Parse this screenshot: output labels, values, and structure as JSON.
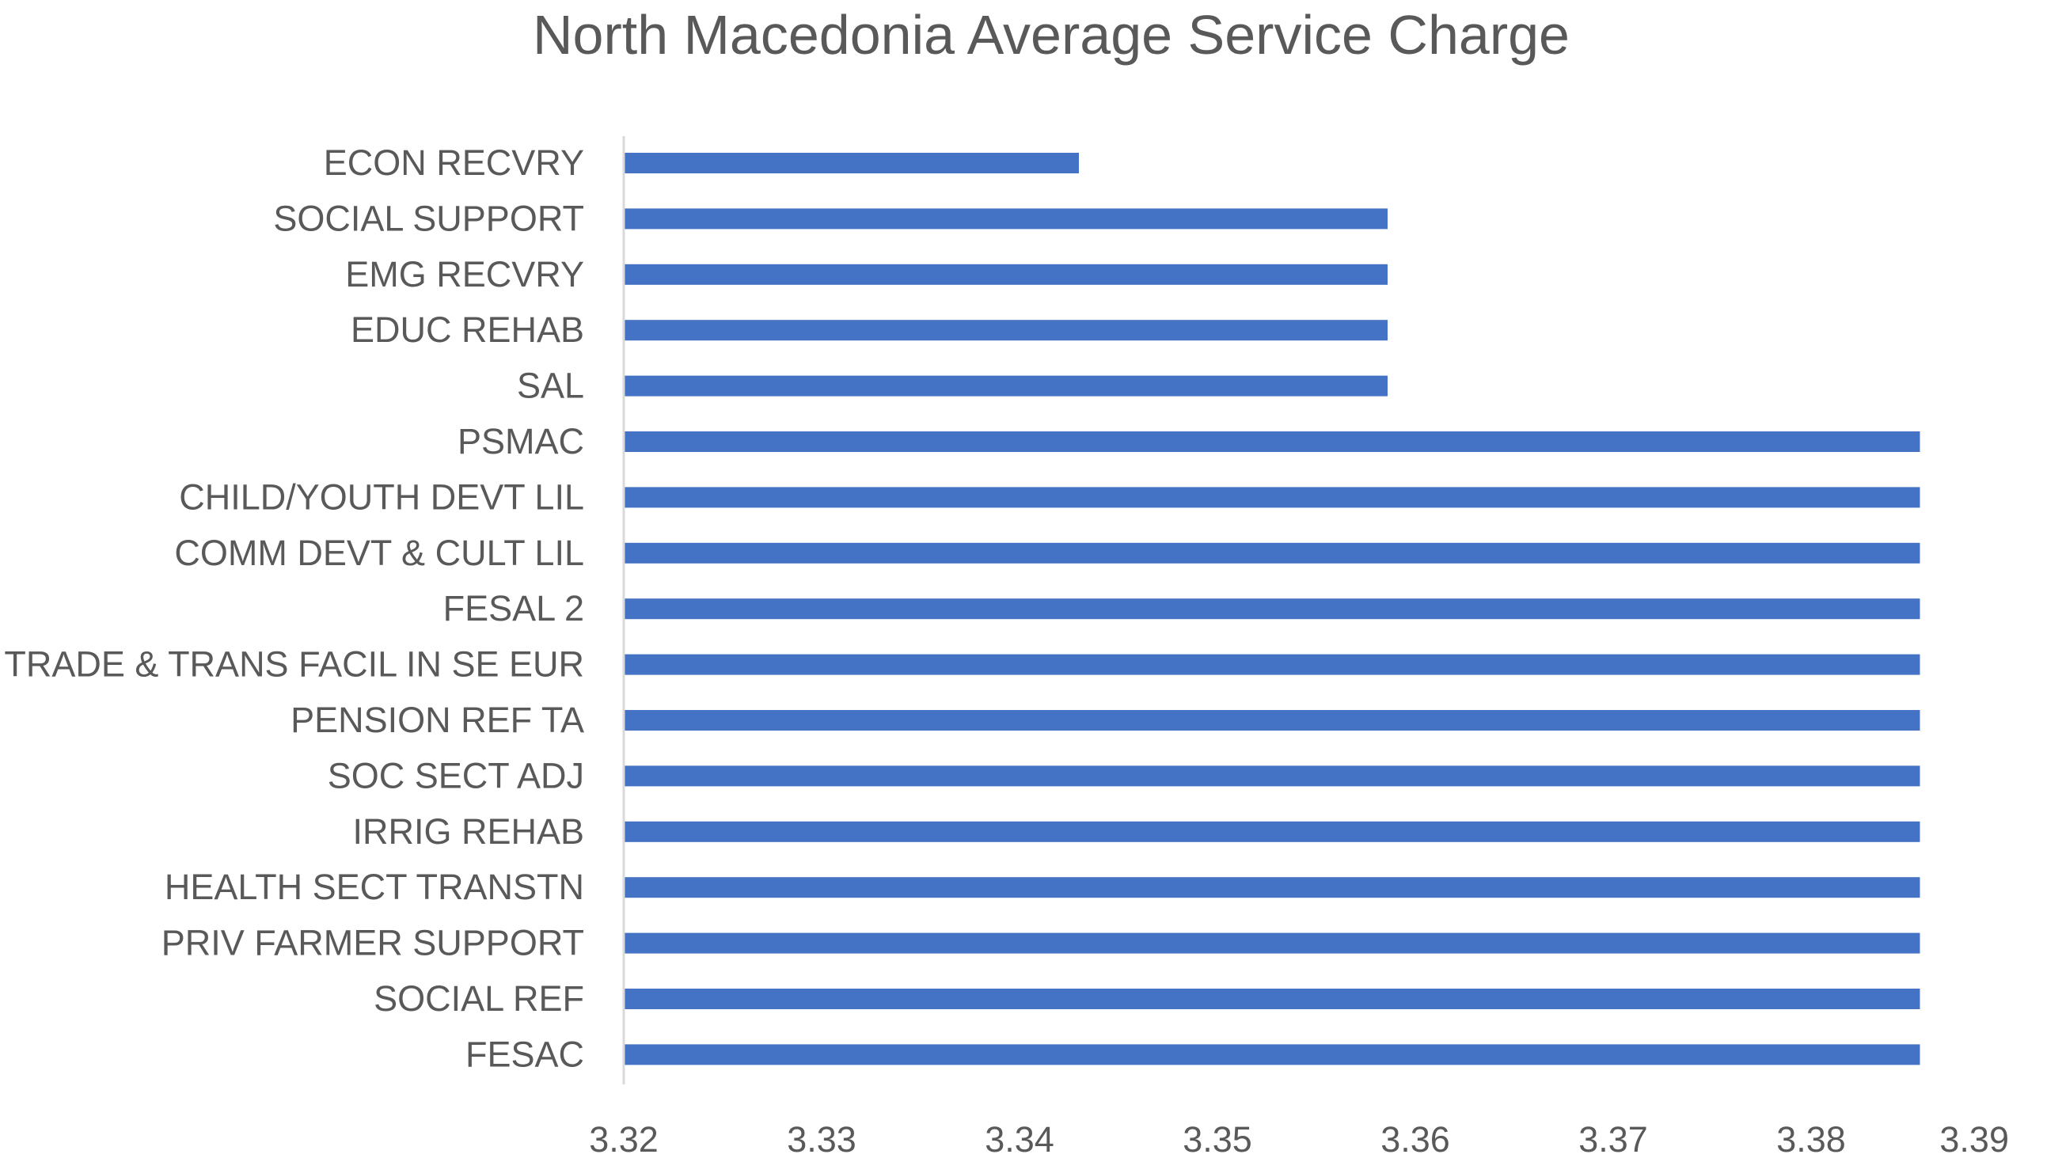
{
  "chart_data": {
    "type": "bar",
    "orientation": "horizontal",
    "title": "North Macedonia Average Service Charge",
    "xlabel": "",
    "ylabel": "",
    "categories": [
      "ECON RECVRY",
      "SOCIAL SUPPORT",
      "EMG RECVRY",
      "EDUC REHAB",
      "SAL",
      "PSMAC",
      "CHILD/YOUTH DEVT LIL",
      "COMM DEVT & CULT LIL",
      "FESAL 2",
      "TRADE & TRANS FACIL IN SE EUR",
      "PENSION REF TA",
      "SOC SECT ADJ",
      "IRRIG REHAB",
      "HEALTH SECT TRANSTN",
      "PRIV FARMER SUPPORT",
      "SOCIAL REF",
      "FESAC"
    ],
    "values": [
      3.343,
      3.3586,
      3.3586,
      3.3586,
      3.3586,
      3.3855,
      3.3855,
      3.3855,
      3.3855,
      3.3855,
      3.3855,
      3.3855,
      3.3855,
      3.3855,
      3.3855,
      3.3855,
      3.3855
    ],
    "xlim": [
      3.32,
      3.39
    ],
    "xticks": [
      "3.32",
      "3.33",
      "3.34",
      "3.35",
      "3.36",
      "3.37",
      "3.38",
      "3.39"
    ],
    "bar_color": "#4472C4",
    "grid": false,
    "legend": "none"
  }
}
